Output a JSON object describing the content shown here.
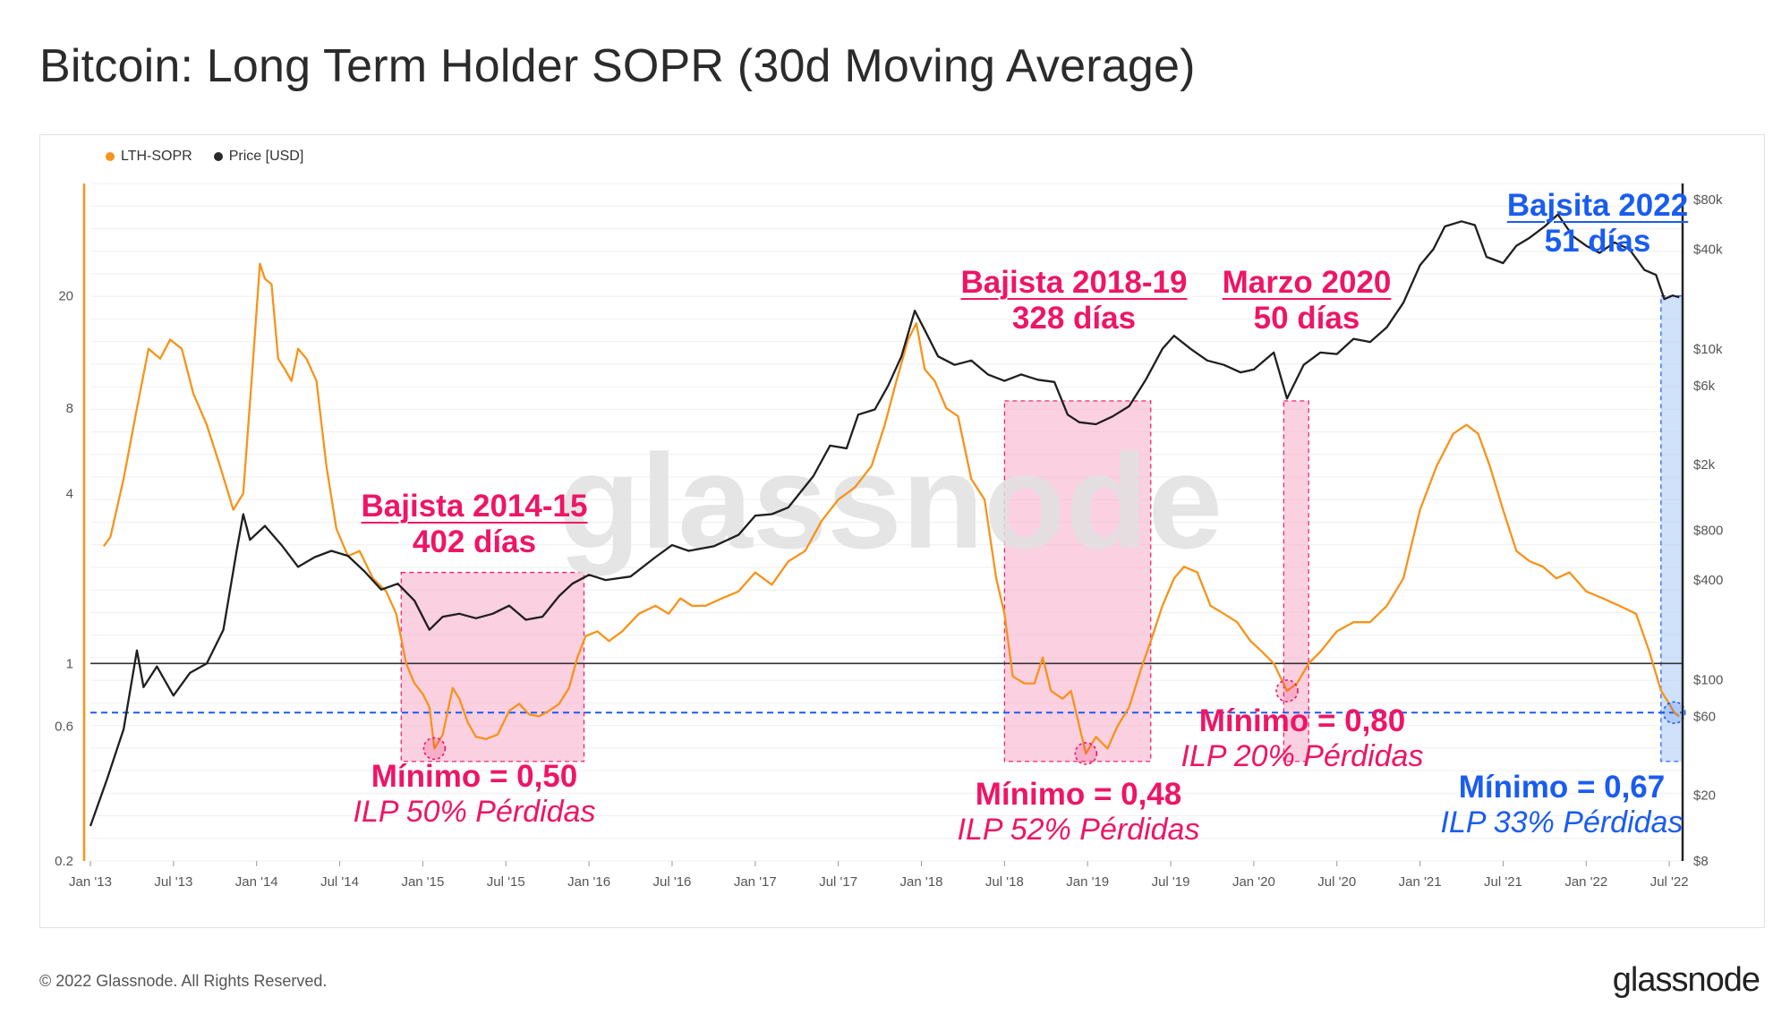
{
  "title": "Bitcoin: Long Term Holder SOPR (30d Moving Average)",
  "footer": {
    "copyright": "© 2022 Glassnode. All Rights Reserved.",
    "logo": "glassnode"
  },
  "watermark": "glassnode",
  "colors": {
    "sopr": "#f7931a",
    "price": "#1f1f1f",
    "pink": "#ee1566",
    "blue": "#1a5cf0",
    "pink_fill": "#f8a9c8",
    "blue_fill": "#a9c9f5"
  },
  "legend": [
    {
      "label": "LTH-SOPR",
      "color": "#f7931a"
    },
    {
      "label": "Price [USD]",
      "color": "#2b2b2b"
    }
  ],
  "annotations": {
    "bear_2014": {
      "title": "Bajista 2014-15",
      "days": "402 días",
      "min": "Mínimo = 0,50",
      "ilp": "ILP 50% Pérdidas"
    },
    "bear_2018": {
      "title": "Bajista 2018-19",
      "days": "328 días",
      "min": "Mínimo = 0,48",
      "ilp": "ILP 52% Pérdidas"
    },
    "march_2020": {
      "title": "Marzo 2020",
      "days": "50 días",
      "min": "Mínimo = 0,80",
      "ilp": "ILP 20% Pérdidas"
    },
    "bear_2022": {
      "title": "Bajsita 2022",
      "days": "51 días",
      "min": "Mínimo = 0,67",
      "ilp": "ILP 33% Pérdidas"
    }
  },
  "chart_data": {
    "type": "line",
    "title": "Bitcoin: Long Term Holder SOPR (30d Moving Average)",
    "x_ticks": [
      "Jan '13",
      "Jul '13",
      "Jan '14",
      "Jul '14",
      "Jan '15",
      "Jul '15",
      "Jan '16",
      "Jul '16",
      "Jan '17",
      "Jul '17",
      "Jan '18",
      "Jul '18",
      "Jan '19",
      "Jul '19",
      "Jan '20",
      "Jul '20",
      "Jan '21",
      "Jul '21",
      "Jan '22",
      "Jul '22"
    ],
    "x_range": [
      2013.0,
      2022.58
    ],
    "left_axis": {
      "label": "LTH-SOPR",
      "scale": "log",
      "range": [
        0.2,
        50
      ],
      "ticks": [
        "0.2",
        "0.6",
        "1",
        "4",
        "8",
        "20"
      ],
      "tick_values": [
        0.2,
        0.6,
        1,
        4,
        8,
        20
      ]
    },
    "right_axis": {
      "label": "Price [USD]",
      "scale": "log",
      "range": [
        8,
        100000
      ],
      "ticks": [
        "$8",
        "$20",
        "$60",
        "$100",
        "$400",
        "$800",
        "$2k",
        "$6k",
        "$10k",
        "$40k",
        "$80k"
      ],
      "tick_values": [
        8,
        20,
        60,
        100,
        400,
        800,
        2000,
        6000,
        10000,
        40000,
        80000
      ]
    },
    "reference_lines": [
      {
        "axis": "left",
        "value": 1,
        "style": "solid"
      },
      {
        "axis": "left",
        "value": 0.67,
        "style": "dashed"
      }
    ],
    "shaded_regions": [
      {
        "name": "Bajista 2014-15",
        "x0": 2014.87,
        "x1": 2015.97,
        "color": "pink"
      },
      {
        "name": "Bajista 2018-19",
        "x0": 2018.5,
        "x1": 2019.38,
        "color": "pink"
      },
      {
        "name": "Marzo 2020",
        "x0": 2020.18,
        "x1": 2020.33,
        "color": "pink"
      },
      {
        "name": "Bajsita 2022",
        "x0": 2022.45,
        "x1": 2022.58,
        "color": "blue"
      }
    ],
    "minimum_markers": [
      {
        "x": 2015.07,
        "value": 0.5
      },
      {
        "x": 2018.99,
        "value": 0.48
      },
      {
        "x": 2020.2,
        "value": 0.8
      },
      {
        "x": 2022.53,
        "value": 0.67
      }
    ],
    "series": [
      {
        "name": "LTH-SOPR",
        "axis": "left",
        "color": "#f7931a",
        "points": [
          [
            2013.08,
            2.6
          ],
          [
            2013.12,
            2.8
          ],
          [
            2013.2,
            4.5
          ],
          [
            2013.28,
            8
          ],
          [
            2013.35,
            13
          ],
          [
            2013.42,
            12
          ],
          [
            2013.48,
            14
          ],
          [
            2013.55,
            13
          ],
          [
            2013.62,
            9
          ],
          [
            2013.7,
            7
          ],
          [
            2013.78,
            5
          ],
          [
            2013.86,
            3.5
          ],
          [
            2013.92,
            4
          ],
          [
            2013.97,
            10
          ],
          [
            2014.02,
            26
          ],
          [
            2014.05,
            23
          ],
          [
            2014.09,
            22
          ],
          [
            2014.13,
            12
          ],
          [
            2014.17,
            11
          ],
          [
            2014.21,
            10
          ],
          [
            2014.25,
            13
          ],
          [
            2014.3,
            12
          ],
          [
            2014.36,
            10
          ],
          [
            2014.42,
            5
          ],
          [
            2014.48,
            3
          ],
          [
            2014.55,
            2.4
          ],
          [
            2014.62,
            2.5
          ],
          [
            2014.7,
            2
          ],
          [
            2014.78,
            1.8
          ],
          [
            2014.84,
            1.5
          ],
          [
            2014.9,
            1
          ],
          [
            2014.95,
            0.85
          ],
          [
            2015.0,
            0.78
          ],
          [
            2015.04,
            0.7
          ],
          [
            2015.07,
            0.5
          ],
          [
            2015.12,
            0.56
          ],
          [
            2015.18,
            0.82
          ],
          [
            2015.22,
            0.75
          ],
          [
            2015.27,
            0.62
          ],
          [
            2015.32,
            0.55
          ],
          [
            2015.38,
            0.54
          ],
          [
            2015.45,
            0.56
          ],
          [
            2015.52,
            0.68
          ],
          [
            2015.58,
            0.72
          ],
          [
            2015.64,
            0.66
          ],
          [
            2015.7,
            0.65
          ],
          [
            2015.76,
            0.68
          ],
          [
            2015.82,
            0.72
          ],
          [
            2015.88,
            0.82
          ],
          [
            2015.93,
            1.05
          ],
          [
            2015.98,
            1.25
          ],
          [
            2016.05,
            1.3
          ],
          [
            2016.12,
            1.2
          ],
          [
            2016.2,
            1.3
          ],
          [
            2016.3,
            1.5
          ],
          [
            2016.4,
            1.6
          ],
          [
            2016.48,
            1.5
          ],
          [
            2016.55,
            1.7
          ],
          [
            2016.62,
            1.6
          ],
          [
            2016.7,
            1.6
          ],
          [
            2016.8,
            1.7
          ],
          [
            2016.9,
            1.8
          ],
          [
            2017.0,
            2.1
          ],
          [
            2017.1,
            1.9
          ],
          [
            2017.2,
            2.3
          ],
          [
            2017.3,
            2.5
          ],
          [
            2017.4,
            3.2
          ],
          [
            2017.5,
            3.8
          ],
          [
            2017.6,
            4.2
          ],
          [
            2017.7,
            5
          ],
          [
            2017.78,
            7
          ],
          [
            2017.85,
            10
          ],
          [
            2017.92,
            14
          ],
          [
            2017.97,
            16
          ],
          [
            2018.02,
            11
          ],
          [
            2018.08,
            10
          ],
          [
            2018.15,
            8
          ],
          [
            2018.22,
            7.5
          ],
          [
            2018.3,
            4.5
          ],
          [
            2018.38,
            3.8
          ],
          [
            2018.45,
            2
          ],
          [
            2018.5,
            1.5
          ],
          [
            2018.55,
            0.9
          ],
          [
            2018.62,
            0.85
          ],
          [
            2018.68,
            0.85
          ],
          [
            2018.73,
            1.05
          ],
          [
            2018.78,
            0.8
          ],
          [
            2018.85,
            0.75
          ],
          [
            2018.9,
            0.8
          ],
          [
            2018.95,
            0.6
          ],
          [
            2018.99,
            0.48
          ],
          [
            2019.05,
            0.55
          ],
          [
            2019.12,
            0.5
          ],
          [
            2019.18,
            0.6
          ],
          [
            2019.25,
            0.7
          ],
          [
            2019.32,
            0.95
          ],
          [
            2019.38,
            1.2
          ],
          [
            2019.45,
            1.6
          ],
          [
            2019.52,
            2
          ],
          [
            2019.58,
            2.2
          ],
          [
            2019.66,
            2.1
          ],
          [
            2019.74,
            1.6
          ],
          [
            2019.82,
            1.5
          ],
          [
            2019.9,
            1.4
          ],
          [
            2019.98,
            1.2
          ],
          [
            2020.05,
            1.1
          ],
          [
            2020.12,
            1.0
          ],
          [
            2020.2,
            0.8
          ],
          [
            2020.26,
            0.85
          ],
          [
            2020.33,
            1.0
          ],
          [
            2020.4,
            1.1
          ],
          [
            2020.5,
            1.3
          ],
          [
            2020.6,
            1.4
          ],
          [
            2020.7,
            1.4
          ],
          [
            2020.8,
            1.6
          ],
          [
            2020.9,
            2
          ],
          [
            2021.0,
            3.5
          ],
          [
            2021.1,
            5
          ],
          [
            2021.2,
            6.5
          ],
          [
            2021.28,
            7
          ],
          [
            2021.35,
            6.5
          ],
          [
            2021.42,
            5
          ],
          [
            2021.5,
            3.5
          ],
          [
            2021.58,
            2.5
          ],
          [
            2021.66,
            2.3
          ],
          [
            2021.74,
            2.2
          ],
          [
            2021.82,
            2.0
          ],
          [
            2021.9,
            2.1
          ],
          [
            2022.0,
            1.8
          ],
          [
            2022.1,
            1.7
          ],
          [
            2022.2,
            1.6
          ],
          [
            2022.3,
            1.5
          ],
          [
            2022.38,
            1.1
          ],
          [
            2022.45,
            0.8
          ],
          [
            2022.5,
            0.72
          ],
          [
            2022.53,
            0.67
          ],
          [
            2022.56,
            0.65
          ]
        ]
      },
      {
        "name": "Price [USD]",
        "axis": "right",
        "color": "#1f1f1f",
        "points": [
          [
            2013.0,
            13
          ],
          [
            2013.1,
            25
          ],
          [
            2013.2,
            50
          ],
          [
            2013.28,
            150
          ],
          [
            2013.32,
            90
          ],
          [
            2013.4,
            120
          ],
          [
            2013.5,
            80
          ],
          [
            2013.6,
            110
          ],
          [
            2013.7,
            125
          ],
          [
            2013.8,
            200
          ],
          [
            2013.88,
            600
          ],
          [
            2013.92,
            1000
          ],
          [
            2013.96,
            700
          ],
          [
            2014.05,
            850
          ],
          [
            2014.15,
            650
          ],
          [
            2014.25,
            480
          ],
          [
            2014.35,
            550
          ],
          [
            2014.45,
            600
          ],
          [
            2014.55,
            560
          ],
          [
            2014.65,
            450
          ],
          [
            2014.75,
            350
          ],
          [
            2014.85,
            380
          ],
          [
            2014.95,
            300
          ],
          [
            2015.04,
            200
          ],
          [
            2015.12,
            240
          ],
          [
            2015.22,
            250
          ],
          [
            2015.32,
            235
          ],
          [
            2015.42,
            250
          ],
          [
            2015.52,
            280
          ],
          [
            2015.62,
            230
          ],
          [
            2015.72,
            240
          ],
          [
            2015.82,
            320
          ],
          [
            2015.9,
            380
          ],
          [
            2016.0,
            430
          ],
          [
            2016.1,
            400
          ],
          [
            2016.25,
            420
          ],
          [
            2016.4,
            550
          ],
          [
            2016.5,
            650
          ],
          [
            2016.6,
            600
          ],
          [
            2016.75,
            640
          ],
          [
            2016.9,
            750
          ],
          [
            2017.0,
            980
          ],
          [
            2017.1,
            1000
          ],
          [
            2017.2,
            1100
          ],
          [
            2017.35,
            1700
          ],
          [
            2017.45,
            2600
          ],
          [
            2017.55,
            2500
          ],
          [
            2017.62,
            4000
          ],
          [
            2017.72,
            4300
          ],
          [
            2017.8,
            6000
          ],
          [
            2017.88,
            9000
          ],
          [
            2017.96,
            17000
          ],
          [
            2018.02,
            13000
          ],
          [
            2018.1,
            9000
          ],
          [
            2018.2,
            8000
          ],
          [
            2018.3,
            8500
          ],
          [
            2018.4,
            7000
          ],
          [
            2018.5,
            6400
          ],
          [
            2018.6,
            7000
          ],
          [
            2018.7,
            6500
          ],
          [
            2018.8,
            6300
          ],
          [
            2018.88,
            4000
          ],
          [
            2018.95,
            3600
          ],
          [
            2019.05,
            3500
          ],
          [
            2019.15,
            3900
          ],
          [
            2019.25,
            4500
          ],
          [
            2019.35,
            6500
          ],
          [
            2019.45,
            10000
          ],
          [
            2019.52,
            12000
          ],
          [
            2019.62,
            10000
          ],
          [
            2019.72,
            8500
          ],
          [
            2019.82,
            8000
          ],
          [
            2019.92,
            7200
          ],
          [
            2020.0,
            7500
          ],
          [
            2020.12,
            9500
          ],
          [
            2020.2,
            5000
          ],
          [
            2020.3,
            8000
          ],
          [
            2020.4,
            9500
          ],
          [
            2020.5,
            9300
          ],
          [
            2020.6,
            11500
          ],
          [
            2020.7,
            11000
          ],
          [
            2020.8,
            13500
          ],
          [
            2020.9,
            19000
          ],
          [
            2021.0,
            32000
          ],
          [
            2021.08,
            40000
          ],
          [
            2021.15,
            55000
          ],
          [
            2021.25,
            59000
          ],
          [
            2021.33,
            56000
          ],
          [
            2021.4,
            36000
          ],
          [
            2021.5,
            33000
          ],
          [
            2021.58,
            42000
          ],
          [
            2021.66,
            47000
          ],
          [
            2021.75,
            55000
          ],
          [
            2021.83,
            65000
          ],
          [
            2021.92,
            48000
          ],
          [
            2022.0,
            42000
          ],
          [
            2022.08,
            38000
          ],
          [
            2022.17,
            44000
          ],
          [
            2022.26,
            40000
          ],
          [
            2022.35,
            30000
          ],
          [
            2022.42,
            28000
          ],
          [
            2022.47,
            20000
          ],
          [
            2022.52,
            21000
          ],
          [
            2022.56,
            20500
          ]
        ]
      }
    ]
  }
}
